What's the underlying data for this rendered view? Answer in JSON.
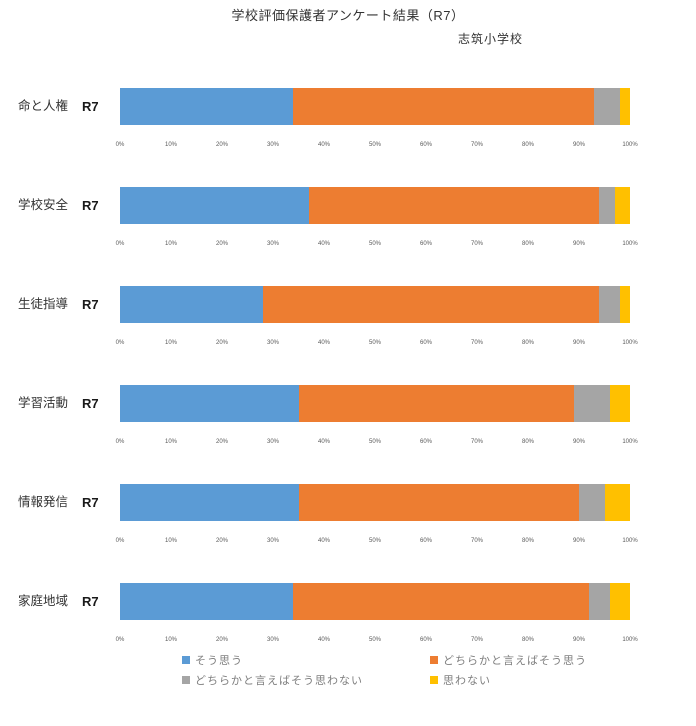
{
  "title": "学校評価保護者アンケート結果（R7）",
  "subtitle": "志筑小学校",
  "row_label": "R7",
  "chart_data": {
    "type": "bar",
    "orientation": "horizontal-stacked",
    "title": "学校評価保護者アンケート結果（R7）",
    "subtitle": "志筑小学校",
    "categories": [
      "命と人権",
      "学校安全",
      "生徒指導",
      "学習活動",
      "情報発信",
      "家庭地域"
    ],
    "series": [
      {
        "name": "そう思う",
        "color": "#5B9BD5",
        "values": [
          34,
          37,
          28,
          35,
          35,
          34
        ]
      },
      {
        "name": "どちらかと言えばそう思う",
        "color": "#ED7D31",
        "values": [
          59,
          57,
          66,
          54,
          55,
          58
        ]
      },
      {
        "name": "どちらかと言えばそう思わない",
        "color": "#A5A5A5",
        "values": [
          5,
          3,
          4,
          7,
          5,
          4
        ]
      },
      {
        "name": "思わない",
        "color": "#FFC000",
        "values": [
          2,
          3,
          2,
          4,
          5,
          4
        ]
      }
    ],
    "x_ticks": [
      "0%",
      "10%",
      "20%",
      "30%",
      "40%",
      "50%",
      "60%",
      "70%",
      "80%",
      "90%",
      "100%"
    ],
    "xlim": [
      0,
      100
    ],
    "unit": "%",
    "grid": false,
    "legend_position": "bottom"
  }
}
